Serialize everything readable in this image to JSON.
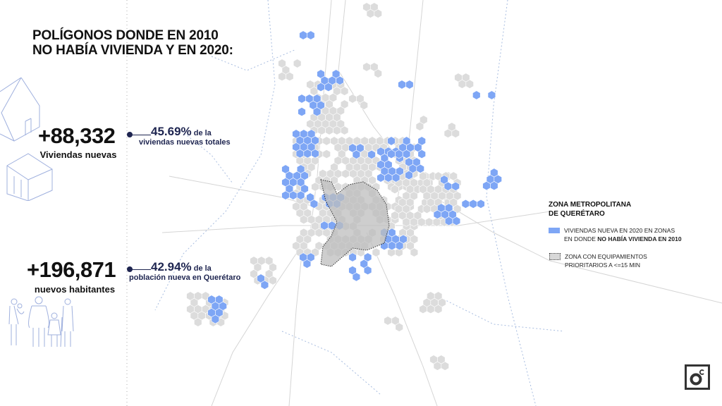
{
  "title": {
    "line1": "POLÍGONOS DONDE EN 2010",
    "line2": "NO HABÍA VIVIENDA Y EN 2020:"
  },
  "stats": [
    {
      "value": "+88,332",
      "label": "Viviendas nuevas",
      "percent": "45.69%",
      "percent_suffix": " de la",
      "percent_desc": "viviendas nuevas totales",
      "icon": "house-icon"
    },
    {
      "value": "+196,871",
      "label": "nuevos habitantes",
      "percent": "42.94%",
      "percent_suffix": " de la",
      "percent_desc": "población nueva en Querétaro",
      "icon": "family-icon"
    }
  ],
  "legend": {
    "title_line1": "ZONA METROPOLITANA",
    "title_line2": "DE QUERÉTARO",
    "items": [
      {
        "line1": "VIVIENDAS NUEVA EN 2020 EN ZONAS",
        "line2_prefix": "EN DONDE ",
        "line2_bold": "NO HABÍA VIVIENDA EN 2010",
        "color": "#7ea6f5"
      },
      {
        "line1": "ZONA CON EQUIPAMIENTOS",
        "line2_prefix": "PRIORITARIOS A <=15 MIN",
        "line2_bold": "",
        "color": "#d8d8d8"
      }
    ]
  },
  "colors": {
    "accent": "#1e2550",
    "new_housing": "#7ea6f5",
    "urban": "#dcdcdc",
    "icons": "#9fb0de"
  },
  "logo": "oc"
}
